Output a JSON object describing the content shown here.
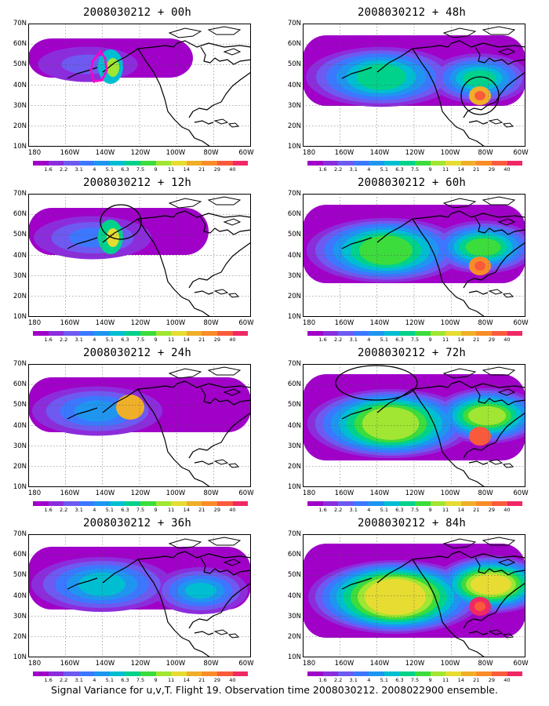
{
  "caption": "Signal Variance for u,v,T. Flight 19. Observation time 2008030212. 2008022900 ensemble.",
  "y_labels": [
    "70N",
    "60N",
    "50N",
    "40N",
    "30N",
    "20N",
    "10N"
  ],
  "x_labels": [
    "180",
    "160W",
    "140W",
    "120W",
    "100W",
    "80W",
    "60W"
  ],
  "colorbar": {
    "labels": [
      "1.6",
      "2.2",
      "3.1",
      "4",
      "5.1",
      "6.3",
      "7.5",
      "9",
      "11",
      "14",
      "21",
      "29",
      "40"
    ],
    "colors": [
      "#a000c8",
      "#8c2ddc",
      "#6e5af0",
      "#3c78ff",
      "#1e96f0",
      "#00bed2",
      "#00d28c",
      "#3cdc3c",
      "#a0e632",
      "#e6dc32",
      "#f0af28",
      "#fa8c28",
      "#fa5a3c",
      "#f02864"
    ]
  },
  "panels": [
    {
      "title": "2008030212 + 00h",
      "col": 0,
      "row": 0,
      "level": 1,
      "features": [
        "flight-track"
      ]
    },
    {
      "title": "2008030212 + 12h",
      "col": 0,
      "row": 1,
      "level": 2,
      "features": [
        "ellipse-alaska"
      ]
    },
    {
      "title": "2008030212 + 24h",
      "col": 0,
      "row": 2,
      "level": 3,
      "features": []
    },
    {
      "title": "2008030212 + 36h",
      "col": 0,
      "row": 3,
      "level": 4,
      "features": []
    },
    {
      "title": "2008030212 + 48h",
      "col": 1,
      "row": 0,
      "level": 5,
      "features": [
        "circle-southeast"
      ]
    },
    {
      "title": "2008030212 + 60h",
      "col": 1,
      "row": 1,
      "level": 6,
      "features": []
    },
    {
      "title": "2008030212 + 72h",
      "col": 1,
      "row": 2,
      "level": 7,
      "features": [
        "ellipse-northwest"
      ]
    },
    {
      "title": "2008030212 + 84h",
      "col": 1,
      "row": 3,
      "level": 8,
      "features": []
    }
  ]
}
